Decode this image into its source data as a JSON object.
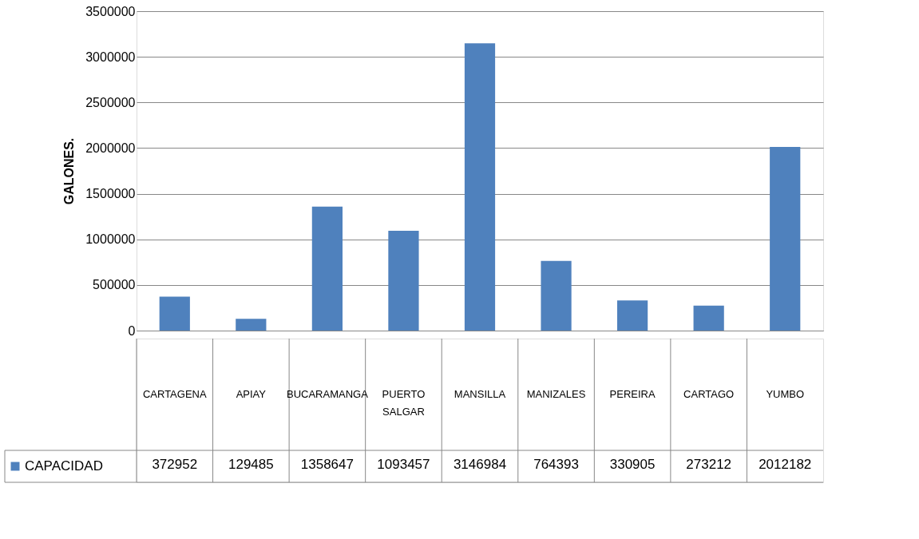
{
  "chart_data": {
    "type": "bar",
    "ylabel": "GALONES.",
    "categories": [
      "CARTAGENA",
      "APIAY",
      "BUCARAMANGA",
      "PUERTO SALGAR",
      "MANSILLA",
      "MANIZALES",
      "PEREIRA",
      "CARTAGO",
      "YUMBO"
    ],
    "series": [
      {
        "name": "CAPACIDAD",
        "color": "#4f81bd",
        "values": [
          372952,
          129485,
          1358647,
          1093457,
          3146984,
          764393,
          330905,
          273212,
          2012182
        ]
      }
    ],
    "ylim": [
      0,
      3500000
    ],
    "yticks": [
      0,
      500000,
      1000000,
      1500000,
      2000000,
      2500000,
      3000000,
      3500000
    ],
    "grid": "y",
    "legend": "bottom left",
    "data_labels": true
  }
}
